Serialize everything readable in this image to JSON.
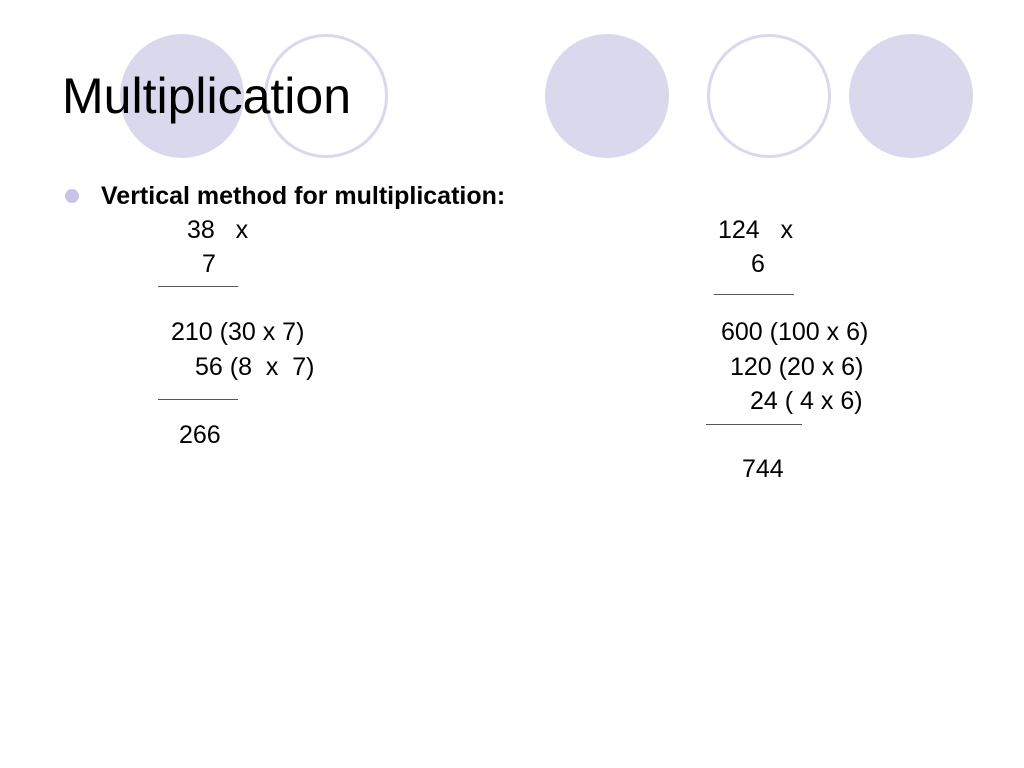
{
  "slide": {
    "title": "Multiplication",
    "bullet": "Vertical method for multiplication:"
  },
  "left_calc": {
    "multiplicand": "38   x",
    "multiplier": "7",
    "partial_1": "210 (30 x 7)",
    "partial_2": "56 (8  x  7)",
    "result": "266"
  },
  "right_calc": {
    "multiplicand": "124   x",
    "multiplier": "6",
    "partial_1": "600 (100 x 6)",
    "partial_2": "120 (20 x 6)",
    "partial_3": "24 ( 4 x 6)",
    "result": "744"
  },
  "theme": {
    "circle_color": "#d9d8ec",
    "bullet_color": "#c6c5e8"
  }
}
